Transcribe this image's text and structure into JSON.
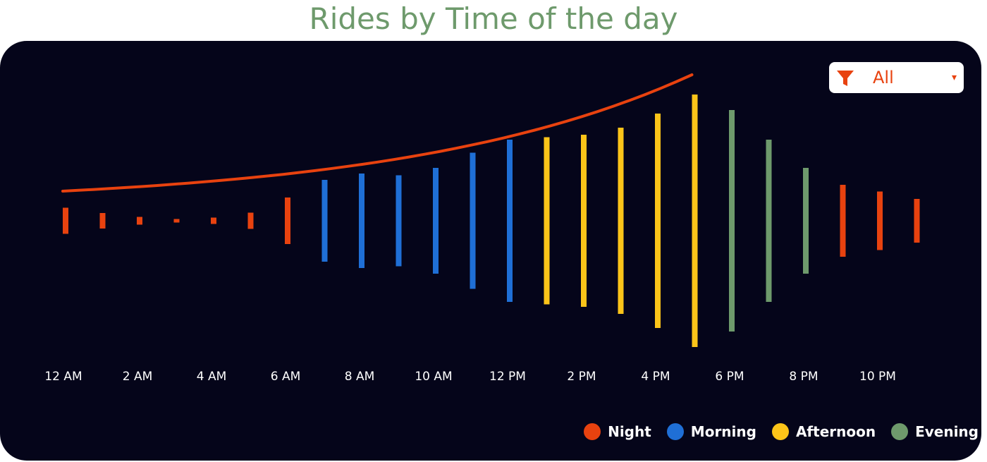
{
  "title": "Rides by Time of the day",
  "filter": {
    "value": "All",
    "icon": "funnel-icon",
    "caret": "▾"
  },
  "colors": {
    "background": "#05051a",
    "Night": "#e8420f",
    "Morning": "#1f6fd6",
    "Afternoon": "#fcc419",
    "Evening": "#6e9a6c",
    "trend": "#e8420f",
    "title": "#6e9a6c"
  },
  "legend": [
    {
      "label": "Night",
      "color": "#e8420f"
    },
    {
      "label": "Morning",
      "color": "#1f6fd6"
    },
    {
      "label": "Afternoon",
      "color": "#fcc419"
    },
    {
      "label": "Evening",
      "color": "#6e9a6c"
    }
  ],
  "chart_data": {
    "type": "bar",
    "title": "Rides by Time of the day",
    "xlabel": "",
    "ylabel": "",
    "grid": false,
    "legend_position": "bottom-right",
    "tick_labels": [
      "12 AM",
      "2 AM",
      "4 AM",
      "6 AM",
      "8 AM",
      "10 AM",
      "12 PM",
      "2 PM",
      "4 PM",
      "6 PM",
      "8 PM",
      "10 PM"
    ],
    "hours": [
      0,
      1,
      2,
      3,
      4,
      5,
      6,
      7,
      8,
      9,
      10,
      11,
      12,
      13,
      14,
      15,
      16,
      17,
      18,
      19,
      20,
      21,
      22,
      23
    ],
    "values": [
      37,
      22,
      11,
      5,
      9,
      23,
      66,
      116,
      134,
      129,
      150,
      193,
      230,
      237,
      244,
      264,
      304,
      358,
      314,
      230,
      150,
      102,
      83,
      62
    ],
    "period": [
      "Night",
      "Night",
      "Night",
      "Night",
      "Night",
      "Night",
      "Night",
      "Morning",
      "Morning",
      "Morning",
      "Morning",
      "Morning",
      "Morning",
      "Afternoon",
      "Afternoon",
      "Afternoon",
      "Afternoon",
      "Afternoon",
      "Evening",
      "Evening",
      "Evening",
      "Night",
      "Night",
      "Night"
    ],
    "trend": {
      "type": "line",
      "color": "#e8420f",
      "x_start": 0,
      "x_end": 17
    }
  }
}
